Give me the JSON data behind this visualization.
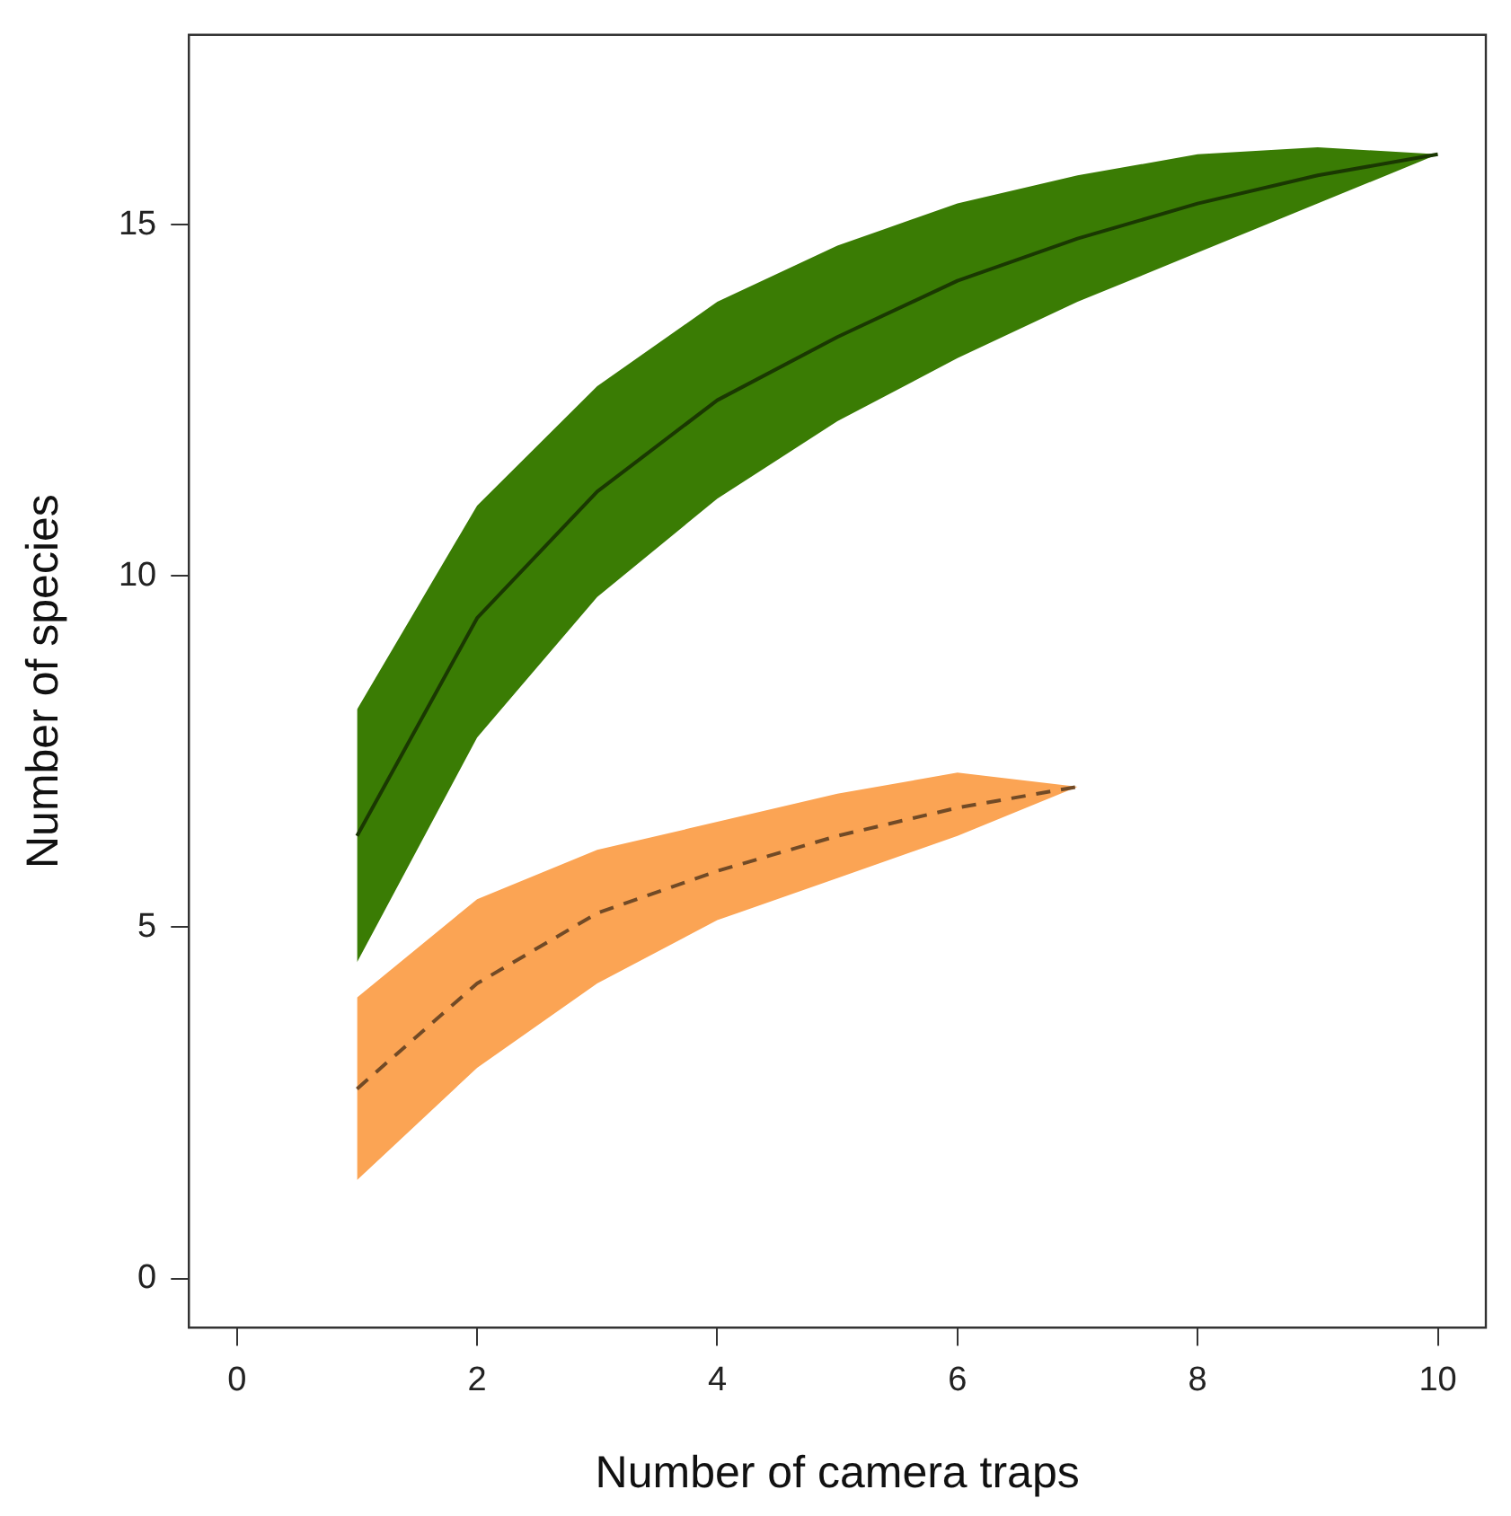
{
  "chart_data": {
    "type": "line",
    "xlabel": "Number of camera traps",
    "ylabel": "Number of species",
    "x": [
      1,
      2,
      3,
      4,
      5,
      6,
      7,
      8,
      9,
      10
    ],
    "series": [
      {
        "color": "#1a3802",
        "line_style": "solid",
        "values": [
          6.3,
          9.4,
          11.2,
          12.5,
          13.4,
          14.2,
          14.8,
          15.3,
          15.7,
          16.0
        ],
        "lower": [
          4.5,
          7.7,
          9.7,
          11.1,
          12.2,
          13.1,
          13.9,
          14.6,
          15.3,
          16.0
        ],
        "upper": [
          8.1,
          11.0,
          12.7,
          13.9,
          14.7,
          15.3,
          15.7,
          16.0,
          16.1,
          16.0
        ]
      },
      {
        "color": "#714a26",
        "line_style": "dashed",
        "values": [
          2.7,
          4.2,
          5.2,
          5.8,
          6.3,
          6.7,
          7.0,
          null,
          null,
          null
        ],
        "lower": [
          1.4,
          3.0,
          4.2,
          5.1,
          5.7,
          6.3,
          7.0,
          null,
          null,
          null
        ],
        "upper": [
          4.0,
          5.4,
          6.1,
          6.5,
          6.9,
          7.2,
          7.0,
          null,
          null,
          null
        ]
      }
    ],
    "xlim": [
      -0.4,
      10.4
    ],
    "ylim": [
      -0.7,
      17.7
    ],
    "xticks": [
      0,
      2,
      4,
      6,
      8,
      10
    ],
    "yticks": [
      0,
      5,
      10,
      15
    ],
    "grid": false,
    "marker": "none"
  }
}
